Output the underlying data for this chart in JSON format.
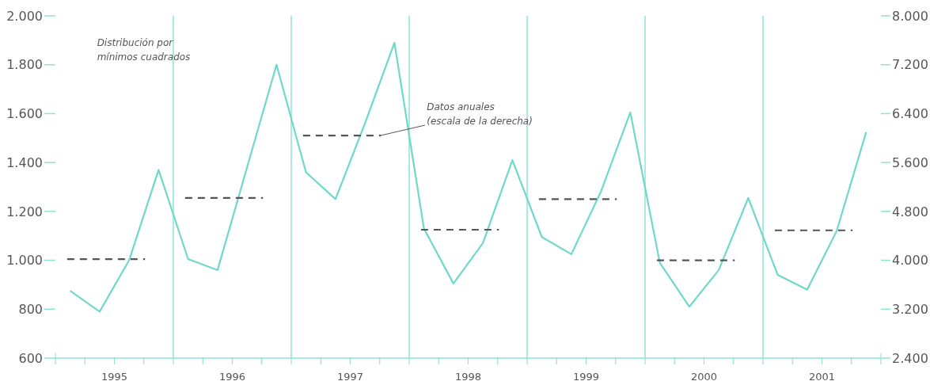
{
  "chart_data": {
    "type": "line",
    "x": [
      1995.125,
      1995.375,
      1995.625,
      1995.875,
      1996.125,
      1996.375,
      1996.625,
      1996.875,
      1997.125,
      1997.375,
      1997.625,
      1997.875,
      1998.125,
      1998.375,
      1998.625,
      1998.875,
      1999.125,
      1999.375,
      1999.625,
      1999.875,
      2000.125,
      2000.375,
      2000.625,
      2000.875,
      2001.125,
      2001.375,
      2001.625,
      2001.875
    ],
    "series": [
      {
        "color": "#6fd9c9",
        "values": [
          875,
          790,
          1000,
          1370,
          1005,
          960,
          1380,
          1800,
          1360,
          1250,
          1560,
          1890,
          1130,
          905,
          1070,
          1410,
          1095,
          1025,
          1280,
          1605,
          990,
          810,
          960,
          1255,
          940,
          880,
          1120,
          1525
        ]
      },
      {
        "color": "#555555",
        "axis": "y2",
        "line_style": "dashed",
        "x": [
          1995.1,
          1995.76,
          1995.9,
          1996.1,
          1996.76,
          1996.9,
          1997.1,
          1997.76,
          1997.9,
          1998.1,
          1998.76,
          1998.9,
          1999.1,
          1999.76,
          1999.9,
          2000.1,
          2000.76,
          2000.9,
          2001.1,
          2001.76
        ],
        "values": [
          4020,
          4020,
          null,
          5020,
          5020,
          null,
          6040,
          6040,
          null,
          4500,
          4500,
          null,
          5000,
          5000,
          null,
          4000,
          4000,
          null,
          4490,
          4490
        ]
      }
    ],
    "xlim": [
      1995,
      2002
    ],
    "xticks": [
      {
        "value": 1995,
        "label": null
      },
      {
        "value": 1995.25,
        "label": null
      },
      {
        "value": 1995.5,
        "label": "1995"
      },
      {
        "value": 1995.75,
        "label": null
      },
      {
        "value": 1996,
        "label": null
      },
      {
        "value": 1996.25,
        "label": null
      },
      {
        "value": 1996.5,
        "label": "1996"
      },
      {
        "value": 1996.75,
        "label": null
      },
      {
        "value": 1997,
        "label": null
      },
      {
        "value": 1997.25,
        "label": null
      },
      {
        "value": 1997.5,
        "label": "1997"
      },
      {
        "value": 1997.75,
        "label": null
      },
      {
        "value": 1998,
        "label": null
      },
      {
        "value": 1998.25,
        "label": null
      },
      {
        "value": 1998.5,
        "label": "1998"
      },
      {
        "value": 1998.75,
        "label": null
      },
      {
        "value": 1999,
        "label": null
      },
      {
        "value": 1999.25,
        "label": null
      },
      {
        "value": 1999.5,
        "label": "1999"
      },
      {
        "value": 1999.75,
        "label": null
      },
      {
        "value": 2000,
        "label": null
      },
      {
        "value": 2000.25,
        "label": null
      },
      {
        "value": 2000.5,
        "label": "2000"
      },
      {
        "value": 2000.75,
        "label": null
      },
      {
        "value": 2001,
        "label": null
      },
      {
        "value": 2001.25,
        "label": null
      },
      {
        "value": 2001.5,
        "label": "2001"
      },
      {
        "value": 2001.75,
        "label": null
      },
      {
        "value": 2002,
        "label": null
      }
    ],
    "ylim": [
      600,
      2000
    ],
    "yticks": [
      600,
      800,
      {
        "value": 1000,
        "label": "1.000"
      },
      {
        "value": 1200,
        "label": "1.200"
      },
      {
        "value": 1400,
        "label": "1.400"
      },
      {
        "value": 1600,
        "label": "1.600"
      },
      {
        "value": 1800,
        "label": "1.800"
      },
      {
        "value": 2000,
        "label": "2.000"
      }
    ],
    "y2lim": [
      2400,
      8000
    ],
    "y2ticks": [
      {
        "value": 2400,
        "label": "2.400"
      },
      {
        "value": 3200,
        "label": "3.200"
      },
      {
        "value": 4000,
        "label": "4.000"
      },
      {
        "value": 4800,
        "label": "4.800"
      },
      {
        "value": 5600,
        "label": "5.600"
      },
      {
        "value": 6400,
        "label": "6.400"
      },
      {
        "value": 7200,
        "label": "7.200"
      },
      {
        "value": 8000,
        "label": "8.000"
      }
    ],
    "ref_lines": [
      {
        "axis": "x",
        "value": 1996,
        "label": null,
        "color": "#8fe3d8"
      },
      {
        "axis": "x",
        "value": 1997,
        "label": null,
        "color": "#8fe3d8"
      },
      {
        "axis": "x",
        "value": 1998,
        "label": null,
        "color": "#8fe3d8"
      },
      {
        "axis": "x",
        "value": 1999,
        "label": null,
        "color": "#8fe3d8"
      },
      {
        "axis": "x",
        "value": 2000,
        "label": null,
        "color": "#8fe3d8"
      },
      {
        "axis": "x",
        "value": 2001,
        "label": null,
        "color": "#8fe3d8"
      }
    ],
    "annotations": [
      "Distribución por\nmínimos cuadrados",
      {
        "text": "Datos anuales\n(escala de la derecha)",
        "x": 1997.76,
        "y": 1510
      }
    ],
    "marker": "none",
    "line_style": "solid"
  }
}
